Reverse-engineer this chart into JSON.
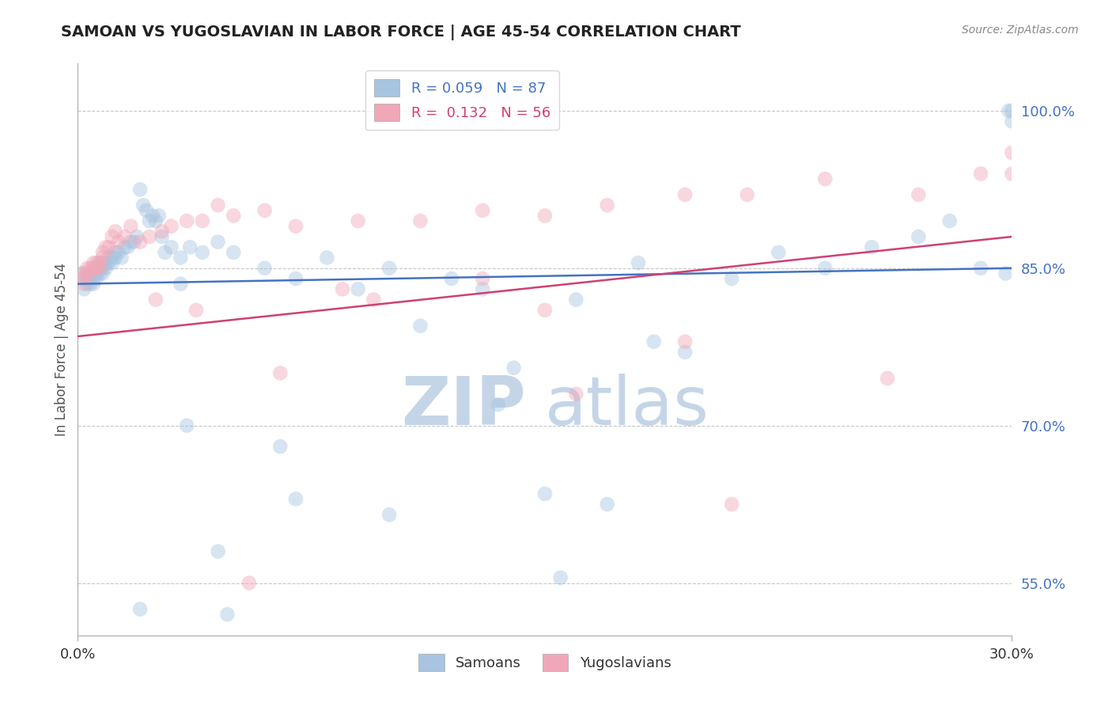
{
  "title": "SAMOAN VS YUGOSLAVIAN IN LABOR FORCE | AGE 45-54 CORRELATION CHART",
  "source": "Source: ZipAtlas.com",
  "ylabel": "In Labor Force | Age 45-54",
  "xlim": [
    0.0,
    0.3
  ],
  "ylim": [
    0.5,
    1.045
  ],
  "xticks": [
    0.0,
    0.3
  ],
  "xticklabels": [
    "0.0%",
    "30.0%"
  ],
  "ytick_positions": [
    0.55,
    0.7,
    0.85,
    1.0
  ],
  "ytick_labels": [
    "55.0%",
    "70.0%",
    "85.0%",
    "100.0%"
  ],
  "grid_color": "#c8c8c8",
  "background_color": "#ffffff",
  "blue_color": "#a8c4e0",
  "pink_color": "#f0a8b8",
  "blue_line_color": "#4472c4",
  "pink_line_color": "#d04070",
  "legend_blue_label": "R = 0.059   N = 87",
  "legend_pink_label": "R =  0.132   N = 56",
  "legend_samoans": "Samoans",
  "legend_yugoslavians": "Yugoslavians",
  "watermark_zip": "ZIP",
  "watermark_atlas": "atlas",
  "watermark_color_zip": "#c8d8ec",
  "watermark_color_atlas": "#c8d8ec",
  "marker_size": 180,
  "marker_alpha": 0.45,
  "blue_x": [
    0.001,
    0.002,
    0.002,
    0.003,
    0.003,
    0.003,
    0.004,
    0.004,
    0.004,
    0.005,
    0.005,
    0.005,
    0.006,
    0.006,
    0.006,
    0.007,
    0.007,
    0.007,
    0.008,
    0.008,
    0.008,
    0.009,
    0.009,
    0.01,
    0.01,
    0.011,
    0.011,
    0.012,
    0.012,
    0.013,
    0.014,
    0.015,
    0.016,
    0.017,
    0.018,
    0.019,
    0.02,
    0.021,
    0.022,
    0.023,
    0.024,
    0.025,
    0.026,
    0.027,
    0.028,
    0.03,
    0.033,
    0.036,
    0.04,
    0.045,
    0.05,
    0.06,
    0.07,
    0.08,
    0.09,
    0.1,
    0.11,
    0.12,
    0.13,
    0.14,
    0.15,
    0.16,
    0.17,
    0.18,
    0.195,
    0.21,
    0.225,
    0.24,
    0.255,
    0.27,
    0.28,
    0.29,
    0.298,
    0.299,
    0.3,
    0.3,
    0.155,
    0.1,
    0.07,
    0.045,
    0.035,
    0.135,
    0.185,
    0.065,
    0.048,
    0.033,
    0.02
  ],
  "blue_y": [
    0.845,
    0.84,
    0.83,
    0.845,
    0.84,
    0.835,
    0.845,
    0.84,
    0.835,
    0.845,
    0.84,
    0.835,
    0.85,
    0.845,
    0.84,
    0.855,
    0.85,
    0.845,
    0.855,
    0.85,
    0.845,
    0.855,
    0.85,
    0.86,
    0.855,
    0.86,
    0.855,
    0.865,
    0.86,
    0.865,
    0.86,
    0.87,
    0.87,
    0.875,
    0.875,
    0.88,
    0.925,
    0.91,
    0.905,
    0.895,
    0.9,
    0.895,
    0.9,
    0.88,
    0.865,
    0.87,
    0.86,
    0.87,
    0.865,
    0.875,
    0.865,
    0.85,
    0.84,
    0.86,
    0.83,
    0.85,
    0.795,
    0.84,
    0.83,
    0.755,
    0.635,
    0.82,
    0.625,
    0.855,
    0.77,
    0.84,
    0.865,
    0.85,
    0.87,
    0.88,
    0.895,
    0.85,
    0.845,
    1.0,
    1.0,
    0.99,
    0.555,
    0.615,
    0.63,
    0.58,
    0.7,
    0.72,
    0.78,
    0.68,
    0.52,
    0.835,
    0.525
  ],
  "pink_x": [
    0.001,
    0.002,
    0.002,
    0.003,
    0.003,
    0.004,
    0.004,
    0.005,
    0.005,
    0.006,
    0.006,
    0.007,
    0.007,
    0.008,
    0.008,
    0.009,
    0.01,
    0.011,
    0.012,
    0.013,
    0.015,
    0.017,
    0.02,
    0.023,
    0.027,
    0.03,
    0.035,
    0.04,
    0.05,
    0.06,
    0.07,
    0.09,
    0.11,
    0.13,
    0.15,
    0.17,
    0.195,
    0.215,
    0.24,
    0.27,
    0.29,
    0.3,
    0.3,
    0.26,
    0.195,
    0.15,
    0.095,
    0.065,
    0.038,
    0.025,
    0.13,
    0.085,
    0.055,
    0.045,
    0.16,
    0.21
  ],
  "pink_y": [
    0.84,
    0.845,
    0.835,
    0.85,
    0.845,
    0.85,
    0.845,
    0.855,
    0.85,
    0.855,
    0.85,
    0.855,
    0.85,
    0.865,
    0.86,
    0.87,
    0.87,
    0.88,
    0.885,
    0.875,
    0.88,
    0.89,
    0.875,
    0.88,
    0.885,
    0.89,
    0.895,
    0.895,
    0.9,
    0.905,
    0.89,
    0.895,
    0.895,
    0.905,
    0.9,
    0.91,
    0.92,
    0.92,
    0.935,
    0.92,
    0.94,
    0.94,
    0.96,
    0.745,
    0.78,
    0.81,
    0.82,
    0.75,
    0.81,
    0.82,
    0.84,
    0.83,
    0.55,
    0.91,
    0.73,
    0.625
  ]
}
